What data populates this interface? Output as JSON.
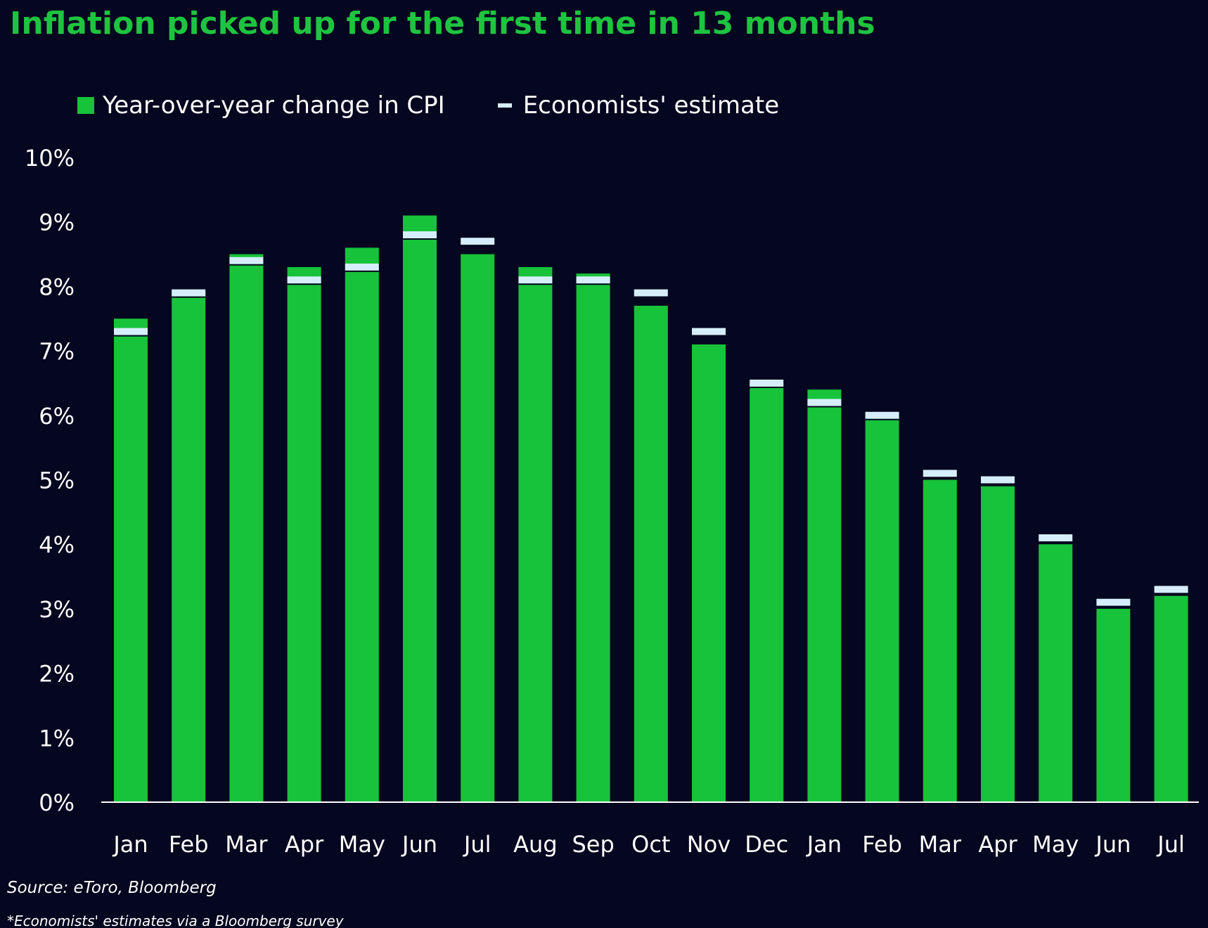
{
  "chart_data": {
    "type": "bar",
    "title": "Inflation picked up for the first time in 13 months",
    "categories": [
      "Jan",
      "Feb",
      "Mar",
      "Apr",
      "May",
      "Jun",
      "Jul",
      "Aug",
      "Sep",
      "Oct",
      "Nov",
      "Dec",
      "Jan",
      "Feb",
      "Mar",
      "Apr",
      "May",
      "Jun",
      "Jul"
    ],
    "series": [
      {
        "name": "Year-over-year change in CPI",
        "type": "bar",
        "color": "#17c33a",
        "values": [
          7.5,
          7.9,
          8.5,
          8.3,
          8.6,
          9.1,
          8.5,
          8.3,
          8.2,
          7.7,
          7.1,
          6.5,
          6.4,
          6.0,
          5.0,
          4.9,
          4.0,
          3.0,
          3.2
        ]
      },
      {
        "name": "Economists' estimate",
        "type": "marker",
        "color": "#d6eefc",
        "values": [
          7.3,
          7.9,
          8.4,
          8.1,
          8.3,
          8.8,
          8.7,
          8.1,
          8.1,
          7.9,
          7.3,
          6.5,
          6.2,
          6.0,
          5.1,
          5.0,
          4.1,
          3.1,
          3.3
        ]
      }
    ],
    "xlabel": "",
    "ylabel": "",
    "ylim": [
      0,
      10
    ],
    "yticks": [
      "0%",
      "1%",
      "2%",
      "3%",
      "4%",
      "5%",
      "6%",
      "7%",
      "8%",
      "9%",
      "10%"
    ],
    "grid": false,
    "legend_position": "top-left"
  },
  "footer": {
    "source": "Source: eToro, Bloomberg",
    "note": "*Economists' estimates via a Bloomberg survey"
  }
}
